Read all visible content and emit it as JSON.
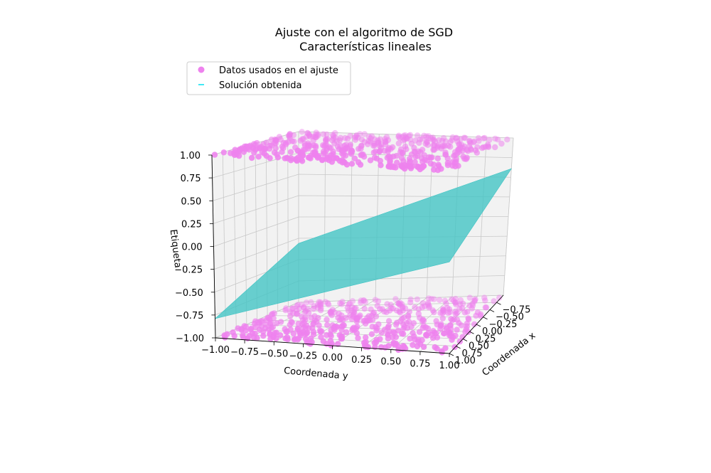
{
  "chart_data": {
    "type": "scatter3d",
    "title": "Ajuste con el algoritmo de SGD",
    "subtitle": "Características lineales",
    "xlabel": "Coordenada x",
    "ylabel": "Coordenada y",
    "zlabel": "Etiqueta",
    "xlim": [
      -1.0,
      1.0
    ],
    "ylim": [
      -1.0,
      1.0
    ],
    "zlim": [
      -1.0,
      1.0
    ],
    "x_ticks": [
      "−0.75",
      "−0.50",
      "−0.25",
      "0.00",
      "0.25",
      "0.50",
      "0.75",
      "1.00"
    ],
    "y_ticks": [
      "−1.00",
      "−0.75",
      "−0.50",
      "−0.25",
      "0.00",
      "0.25",
      "0.50",
      "0.75",
      "1.00"
    ],
    "z_ticks": [
      "−1.00",
      "−0.75",
      "−0.50",
      "−0.25",
      "0.00",
      "0.25",
      "0.50",
      "0.75",
      "1.00"
    ],
    "grid": true,
    "legend_position": "top-left",
    "series": [
      {
        "name": "Datos usados en el ajuste",
        "kind": "scatter",
        "color": "#ee82ee",
        "label_values": [
          1,
          -1
        ],
        "approx_points": 1000
      },
      {
        "name": "Solución obtenida",
        "kind": "surface",
        "color": "#40c4c4",
        "plane_corners_z": {
          "x_minus1_y_minus1": -0.31,
          "x_minus1_y_plus1": 0.61,
          "x_plus1_y_minus1": -0.79,
          "x_plus1_y_plus1": 0.01
        }
      }
    ]
  }
}
